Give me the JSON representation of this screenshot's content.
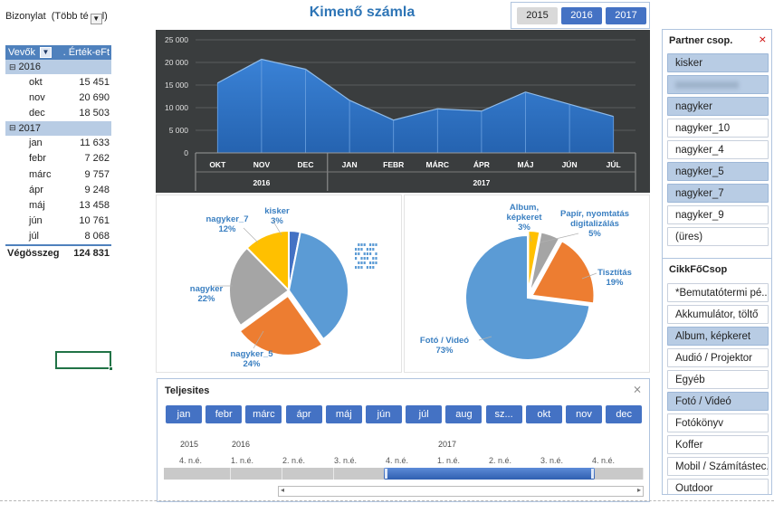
{
  "filter": {
    "label": "Bizonylat",
    "value": "(Több té",
    "end": "l)"
  },
  "pivot": {
    "col1": "Vevők",
    "col2": ". Érték-eFt",
    "years": [
      {
        "year": "2016",
        "rows": [
          {
            "m": "okt",
            "v": "15 451"
          },
          {
            "m": "nov",
            "v": "20 690"
          },
          {
            "m": "dec",
            "v": "18 503"
          }
        ]
      },
      {
        "year": "2017",
        "rows": [
          {
            "m": "jan",
            "v": "11 633"
          },
          {
            "m": "febr",
            "v": "7 262"
          },
          {
            "m": "márc",
            "v": "9 757"
          },
          {
            "m": "ápr",
            "v": "9 248"
          },
          {
            "m": "máj",
            "v": "13 458"
          },
          {
            "m": "jún",
            "v": "10 761"
          },
          {
            "m": "júl",
            "v": "8 068"
          }
        ]
      }
    ],
    "total_label": "Végösszeg",
    "total_value": "124 831"
  },
  "title": "Kimenő számla",
  "year_slicer": [
    {
      "label": "2015",
      "on": false
    },
    {
      "label": "2016",
      "on": true
    },
    {
      "label": "2017",
      "on": true
    }
  ],
  "chart_data": [
    {
      "type": "area",
      "categories": [
        "OKT",
        "NOV",
        "DEC",
        "JAN",
        "FEBR",
        "MÁRC",
        "ÁPR",
        "MÁJ",
        "JÚN",
        "JÚL"
      ],
      "groups": [
        {
          "label": "2016",
          "count": 3
        },
        {
          "label": "2017",
          "count": 7
        }
      ],
      "values": [
        15451,
        20690,
        18503,
        11633,
        7262,
        9757,
        9248,
        13458,
        10761,
        8068
      ],
      "yticks": [
        "0",
        "5 000",
        "10 000",
        "15 000",
        "20 000",
        "25 000"
      ],
      "ylim": [
        0,
        25000
      ],
      "color": "#2e75c8"
    },
    {
      "type": "pie",
      "slices": [
        {
          "label": "kisker",
          "pct": "3%",
          "value": 3,
          "color": "#4472c4"
        },
        {
          "label": "",
          "pct": "",
          "value": 36,
          "color": "#5b9bd5"
        },
        {
          "label": "nagyker_5",
          "pct": "24%",
          "value": 24,
          "color": "#ed7d31"
        },
        {
          "label": "nagyker",
          "pct": "22%",
          "value": 22,
          "color": "#a5a5a5"
        },
        {
          "label": "nagyker_7",
          "pct": "12%",
          "value": 12,
          "color": "#ffc000"
        }
      ]
    },
    {
      "type": "pie",
      "slices": [
        {
          "label": "Album, képkeret",
          "pct": "3%",
          "value": 3,
          "color": "#ffc000"
        },
        {
          "label": "Papír, nyomtatás digitalizálás",
          "pct": "5%",
          "value": 5,
          "color": "#a5a5a5"
        },
        {
          "label": "Tisztítás",
          "pct": "19%",
          "value": 19,
          "color": "#ed7d31"
        },
        {
          "label": "Fotó / Videó",
          "pct": "73%",
          "value": 73,
          "color": "#5b9bd5"
        }
      ]
    }
  ],
  "timeline": {
    "title": "Teljesites",
    "months": [
      "jan",
      "febr",
      "márc",
      "ápr",
      "máj",
      "jún",
      "júl",
      "aug",
      "sz...",
      "okt",
      "nov",
      "dec"
    ],
    "years": [
      {
        "label": "2015",
        "x": 25
      },
      {
        "label": "2016",
        "x": 82
      },
      {
        "label": "2017",
        "x": 310
      }
    ],
    "quarters": [
      "4. n.é.",
      "1. n.é.",
      "2. n.é.",
      "3. n.é.",
      "4. n.é.",
      "1. n.é.",
      "2. n.é.",
      "3. n.é.",
      "4. n.é."
    ]
  },
  "partner_slicer": {
    "title": "Partner csop.",
    "items": [
      {
        "label": "kisker",
        "on": true
      },
      {
        "label": "",
        "on": true,
        "blurred": true
      },
      {
        "label": "nagyker",
        "on": true
      },
      {
        "label": "nagyker_10",
        "on": false
      },
      {
        "label": "nagyker_4",
        "on": false
      },
      {
        "label": "nagyker_5",
        "on": true
      },
      {
        "label": "nagyker_7",
        "on": true
      },
      {
        "label": "nagyker_9",
        "on": false
      },
      {
        "label": "(üres)",
        "on": false
      }
    ]
  },
  "cikk_slicer": {
    "title": "CikkFőCsop",
    "items": [
      {
        "label": "*Bemutatótermi pé...",
        "on": false
      },
      {
        "label": "Akkumulátor, töltő",
        "on": false
      },
      {
        "label": "Album, képkeret",
        "on": true
      },
      {
        "label": "Audió / Projektor",
        "on": false
      },
      {
        "label": "Egyéb",
        "on": false
      },
      {
        "label": "Fotó / Videó",
        "on": true
      },
      {
        "label": "Fotókönyv",
        "on": false
      },
      {
        "label": "Koffer",
        "on": false
      },
      {
        "label": "Mobil / Számítástec...",
        "on": false
      },
      {
        "label": "Outdoor",
        "on": false
      }
    ]
  }
}
